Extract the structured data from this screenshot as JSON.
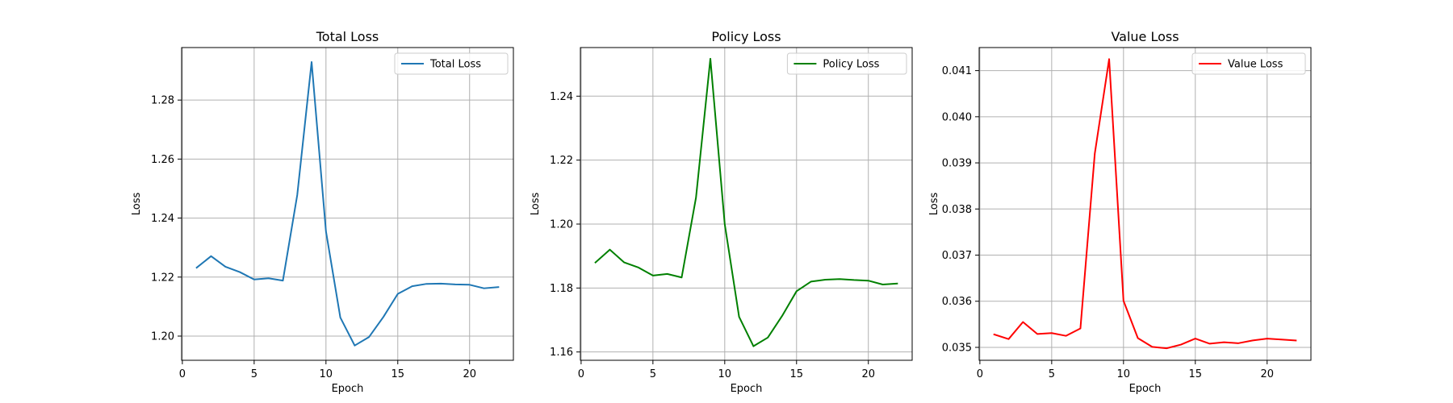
{
  "chart_data": [
    {
      "type": "line",
      "title": "Total Loss",
      "xlabel": "Epoch",
      "ylabel": "Loss",
      "xlim": [
        -0.05,
        23.05
      ],
      "ylim": [
        1.1918,
        1.2978
      ],
      "xticks": [
        0,
        5,
        10,
        15,
        20
      ],
      "yticks": [
        1.2,
        1.22,
        1.24,
        1.26,
        1.28
      ],
      "ytick_labels": [
        "1.20",
        "1.22",
        "1.24",
        "1.26",
        "1.28"
      ],
      "grid": true,
      "legend": "upper-right",
      "series": [
        {
          "name": "Total Loss",
          "color": "#1f77b4",
          "x": [
            1,
            2,
            3,
            4,
            5,
            6,
            7,
            8,
            9,
            10,
            11,
            12,
            13,
            14,
            15,
            16,
            17,
            18,
            19,
            20,
            21,
            22
          ],
          "y": [
            1.2232,
            1.2271,
            1.2235,
            1.2217,
            1.2192,
            1.2196,
            1.2188,
            1.2478,
            1.2929,
            1.2355,
            1.2063,
            1.1968,
            1.1997,
            1.2065,
            1.2143,
            1.2169,
            1.2177,
            1.2178,
            1.2175,
            1.2174,
            1.2162,
            1.2166
          ]
        }
      ]
    },
    {
      "type": "line",
      "title": "Policy Loss",
      "xlabel": "Epoch",
      "ylabel": "Loss",
      "xlim": [
        -0.05,
        23.05
      ],
      "ylim": [
        1.1574,
        1.2552
      ],
      "xticks": [
        0,
        5,
        10,
        15,
        20
      ],
      "yticks": [
        1.16,
        1.18,
        1.2,
        1.22,
        1.24
      ],
      "ytick_labels": [
        "1.16",
        "1.18",
        "1.20",
        "1.22",
        "1.24"
      ],
      "grid": true,
      "legend": "upper-right",
      "series": [
        {
          "name": "Policy Loss",
          "color": "#008000",
          "x": [
            1,
            2,
            3,
            4,
            5,
            6,
            7,
            8,
            9,
            10,
            11,
            12,
            13,
            14,
            15,
            16,
            17,
            18,
            19,
            20,
            21,
            22
          ],
          "y": [
            1.188,
            1.192,
            1.188,
            1.1864,
            1.1839,
            1.1844,
            1.1833,
            1.2083,
            1.2517,
            1.2,
            1.171,
            1.1618,
            1.1645,
            1.1713,
            1.179,
            1.182,
            1.1826,
            1.1828,
            1.1825,
            1.1823,
            1.1811,
            1.1814
          ]
        }
      ]
    },
    {
      "type": "line",
      "title": "Value Loss",
      "xlabel": "Epoch",
      "ylabel": "Loss",
      "xlim": [
        -0.05,
        23.05
      ],
      "ylim": [
        0.03472,
        0.0415
      ],
      "xticks": [
        0,
        5,
        10,
        15,
        20
      ],
      "yticks": [
        0.035,
        0.036,
        0.037,
        0.038,
        0.039,
        0.04,
        0.041
      ],
      "ytick_labels": [
        "0.035",
        "0.036",
        "0.037",
        "0.038",
        "0.039",
        "0.040",
        "0.041"
      ],
      "grid": true,
      "legend": "upper-right",
      "series": [
        {
          "name": "Value Loss",
          "color": "#ff0000",
          "x": [
            1,
            2,
            3,
            4,
            5,
            6,
            7,
            8,
            9,
            10,
            11,
            12,
            13,
            14,
            15,
            16,
            17,
            18,
            19,
            20,
            21,
            22
          ],
          "y": [
            0.03528,
            0.03518,
            0.03555,
            0.03529,
            0.03531,
            0.03525,
            0.03541,
            0.0392,
            0.04125,
            0.03601,
            0.0352,
            0.03501,
            0.03498,
            0.03506,
            0.03519,
            0.03508,
            0.03511,
            0.03509,
            0.03515,
            0.03519,
            0.03517,
            0.03515
          ]
        }
      ]
    }
  ]
}
